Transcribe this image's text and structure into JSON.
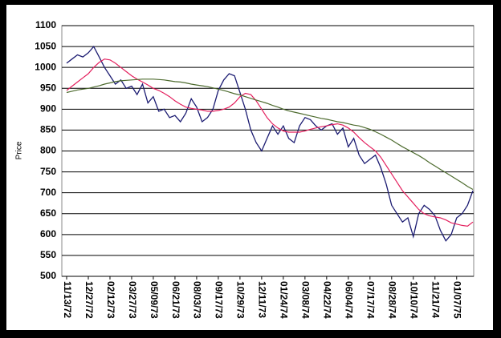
{
  "chart_data": {
    "type": "line",
    "ylabel": "Price",
    "categories": [
      "11/13/72",
      null,
      null,
      null,
      "12/27/72",
      null,
      null,
      null,
      "02/12/73",
      null,
      null,
      null,
      "03/27/73",
      null,
      null,
      null,
      "05/09/73",
      null,
      null,
      null,
      "06/21/73",
      null,
      null,
      null,
      "08/03/73",
      null,
      null,
      null,
      "09/17/73",
      null,
      null,
      null,
      "10/29/73",
      null,
      null,
      null,
      "12/11/73",
      null,
      null,
      null,
      "01/24/74",
      null,
      null,
      null,
      "03/08/74",
      null,
      null,
      null,
      "04/22/74",
      null,
      null,
      null,
      "06/04/74",
      null,
      null,
      null,
      "07/17/74",
      null,
      null,
      null,
      "08/28/74",
      null,
      null,
      null,
      "10/10/74",
      null,
      null,
      null,
      "11/21/74",
      null,
      null,
      null,
      "01/07/75",
      null,
      null,
      null
    ],
    "series": [
      {
        "color": "#1c1c72",
        "values": [
          1010,
          1020,
          1030,
          1025,
          1035,
          1050,
          1025,
          1000,
          980,
          960,
          970,
          950,
          955,
          935,
          960,
          915,
          930,
          895,
          900,
          880,
          885,
          870,
          890,
          925,
          905,
          870,
          880,
          900,
          945,
          970,
          985,
          980,
          940,
          900,
          850,
          820,
          800,
          830,
          860,
          840,
          860,
          830,
          820,
          860,
          880,
          875,
          860,
          850,
          860,
          865,
          840,
          855,
          810,
          830,
          790,
          770,
          780,
          790,
          760,
          720,
          670,
          650,
          630,
          640,
          595,
          650,
          670,
          660,
          645,
          610,
          585,
          600,
          640,
          650,
          670,
          705
        ]
      },
      {
        "color": "#e4205e",
        "values": [
          945,
          955,
          965,
          975,
          985,
          1000,
          1012,
          1020,
          1018,
          1010,
          1000,
          990,
          980,
          972,
          965,
          958,
          950,
          945,
          938,
          930,
          920,
          912,
          905,
          902,
          900,
          898,
          895,
          895,
          897,
          900,
          905,
          915,
          930,
          938,
          935,
          920,
          900,
          880,
          865,
          855,
          848,
          845,
          845,
          845,
          848,
          852,
          855,
          858,
          860,
          863,
          865,
          862,
          855,
          845,
          832,
          820,
          810,
          800,
          785,
          765,
          745,
          725,
          705,
          690,
          675,
          660,
          650,
          645,
          642,
          640,
          635,
          628,
          625,
          622,
          620,
          630
        ]
      },
      {
        "color": "#4d6b2e",
        "values": [
          940,
          943,
          946,
          948,
          950,
          953,
          956,
          960,
          963,
          966,
          968,
          969,
          970,
          971,
          972,
          972,
          972,
          971,
          970,
          968,
          966,
          965,
          963,
          960,
          958,
          956,
          954,
          951,
          948,
          945,
          941,
          937,
          934,
          930,
          926,
          922,
          918,
          914,
          909,
          905,
          900,
          896,
          893,
          890,
          887,
          884,
          881,
          878,
          876,
          873,
          870,
          868,
          865,
          862,
          860,
          856,
          852,
          846,
          840,
          833,
          826,
          818,
          810,
          803,
          796,
          789,
          781,
          772,
          764,
          756,
          748,
          740,
          732,
          724,
          715,
          708
        ]
      }
    ],
    "ylim": [
      500,
      1100
    ],
    "yticks": [
      500,
      550,
      600,
      650,
      700,
      750,
      800,
      850,
      900,
      950,
      1000,
      1050,
      1100
    ],
    "grid": true
  }
}
